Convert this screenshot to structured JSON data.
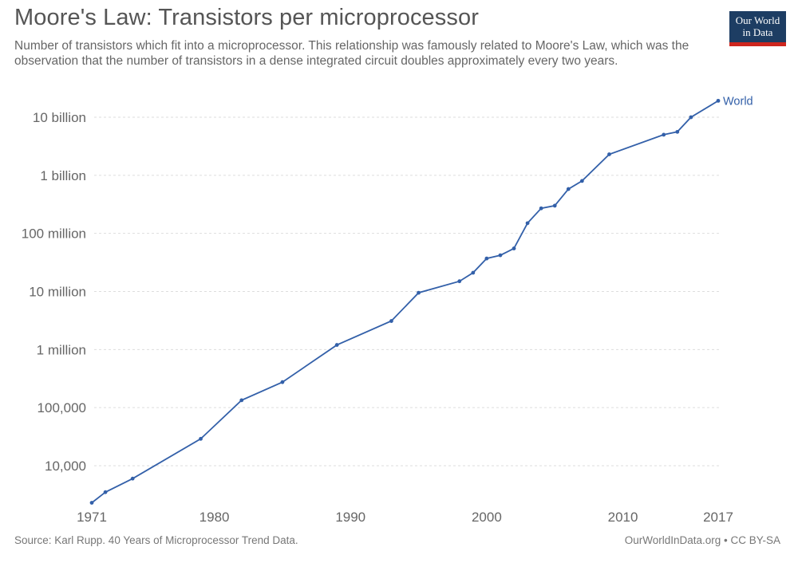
{
  "header": {
    "title": "Moore's Law: Transistors per microprocessor",
    "subtitle": "Number of transistors which fit into a microprocessor. This relationship was famously related to Moore's Law, which was the observation that the number of transistors in a dense integrated circuit doubles approximately every two years.",
    "logo_line1": "Our World",
    "logo_line2": "in Data"
  },
  "footer": {
    "source": "Source: Karl Rupp. 40 Years of Microprocessor Trend Data.",
    "credit": "OurWorldInData.org • CC BY-SA"
  },
  "colors": {
    "line": "#3360a9",
    "grid": "#dddddd",
    "logo_bg": "#1d3d63",
    "logo_bar": "#ce261e"
  },
  "chart_data": {
    "type": "line",
    "title": "Moore's Law: Transistors per microprocessor",
    "xlabel": "",
    "ylabel": "",
    "y_scale": "log",
    "xlim": [
      1971,
      2017
    ],
    "ylim": [
      2000,
      20000000000
    ],
    "grid": true,
    "x_ticks": [
      {
        "value": 1971,
        "label": "1971"
      },
      {
        "value": 1980,
        "label": "1980"
      },
      {
        "value": 1990,
        "label": "1990"
      },
      {
        "value": 2000,
        "label": "2000"
      },
      {
        "value": 2010,
        "label": "2010"
      },
      {
        "value": 2017,
        "label": "2017"
      }
    ],
    "y_ticks": [
      {
        "value": 10000,
        "label": "10,000"
      },
      {
        "value": 100000,
        "label": "100,000"
      },
      {
        "value": 1000000,
        "label": "1 million"
      },
      {
        "value": 10000000,
        "label": "10 million"
      },
      {
        "value": 100000000,
        "label": "100 million"
      },
      {
        "value": 1000000000,
        "label": "1 billion"
      },
      {
        "value": 10000000000,
        "label": "10 billion"
      }
    ],
    "series": [
      {
        "name": "World",
        "points": [
          [
            1971,
            2300
          ],
          [
            1972,
            3500
          ],
          [
            1974,
            6000
          ],
          [
            1979,
            29000
          ],
          [
            1982,
            134000
          ],
          [
            1985,
            275000
          ],
          [
            1989,
            1200000
          ],
          [
            1993,
            3100000
          ],
          [
            1995,
            9500000
          ],
          [
            1998,
            15000000
          ],
          [
            1999,
            21000000
          ],
          [
            2000,
            37000000
          ],
          [
            2001,
            42000000
          ],
          [
            2002,
            55000000
          ],
          [
            2003,
            150000000
          ],
          [
            2004,
            270000000
          ],
          [
            2005,
            300000000
          ],
          [
            2006,
            580000000
          ],
          [
            2007,
            800000000
          ],
          [
            2009,
            2300000000
          ],
          [
            2013,
            5000000000
          ],
          [
            2014,
            5600000000
          ],
          [
            2015,
            10000000000
          ],
          [
            2017,
            19200000000
          ]
        ]
      }
    ]
  }
}
